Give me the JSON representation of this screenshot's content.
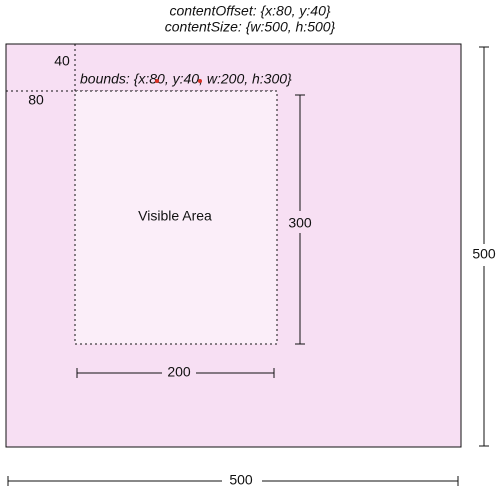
{
  "header": {
    "content_offset_label": "contentOffset: {x:80, y:40}",
    "content_size_label": "contentSize: {w:500, h:500}"
  },
  "content": {
    "offset_y_label": "40",
    "offset_x_label": "80",
    "bounds_label": "bounds: {x:80, y:40, w:200, h:300}",
    "visible_area_label": "Visible Area",
    "height_label": "300",
    "width_label": "200",
    "content_height_label": "500",
    "content_width_label": "500"
  },
  "colors": {
    "content_fill": "#f7dff3",
    "visible_fill": "#fbeef9",
    "stroke": "#111111",
    "marker_red": "#d93025"
  }
}
